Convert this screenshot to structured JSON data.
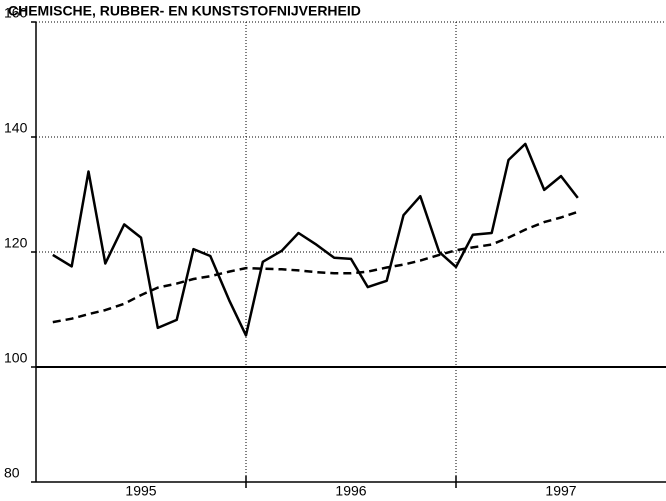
{
  "chart_data": {
    "type": "line",
    "title": "CHEMISCHE, RUBBER- EN KUNSTSTOFNIJVERHEID",
    "x": [
      1994.58,
      1994.67,
      1994.75,
      1994.83,
      1994.92,
      1995.0,
      1995.08,
      1995.17,
      1995.25,
      1995.33,
      1995.42,
      1995.5,
      1995.58,
      1995.67,
      1995.75,
      1995.83,
      1995.92,
      1996.0,
      1996.08,
      1996.17,
      1996.25,
      1996.33,
      1996.42,
      1996.5,
      1996.58,
      1996.67,
      1996.75,
      1996.83,
      1996.92,
      1997.0,
      1997.08
    ],
    "series": [
      {
        "color": "#000000",
        "dash": false,
        "values": [
          119.5,
          117.5,
          134,
          118,
          124.8,
          122.5,
          106.8,
          108.2,
          120.5,
          119.3,
          111.6,
          105.5,
          118.3,
          120.2,
          123.3,
          121.4,
          119,
          118.8,
          113.9,
          115,
          126.4,
          129.7,
          120,
          117.4,
          123,
          123.3,
          136,
          138.8,
          130.8,
          133.2,
          129.4
        ]
      },
      {
        "color": "#000000",
        "dash": true,
        "values": [
          107.8,
          108.4,
          109.2,
          109.9,
          111.0,
          112.5,
          113.8,
          114.5,
          115.3,
          115.8,
          116.6,
          117.2,
          117.1,
          117.0,
          116.8,
          116.5,
          116.3,
          116.3,
          116.6,
          117.3,
          117.8,
          118.5,
          119.5,
          120.3,
          120.8,
          121.3,
          122.5,
          123.9,
          125.2,
          126.0,
          127.0
        ]
      }
    ],
    "xlim": [
      1994.5,
      1997.5
    ],
    "xticks": [
      1995,
      1996,
      1997
    ],
    "xgrid": [
      1995.5,
      1996.5
    ],
    "ylim": [
      80,
      160
    ],
    "yticks": [
      80,
      100,
      120,
      140,
      160
    ],
    "reference_line": 100,
    "grid": true
  }
}
